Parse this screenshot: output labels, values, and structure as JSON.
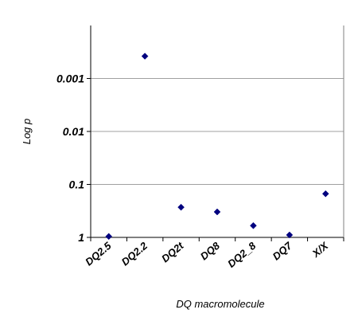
{
  "chart_data": {
    "type": "scatter",
    "xlabel": "DQ macromolecule",
    "ylabel": "Log p",
    "y_scale": "log-reversed",
    "ylim": [
      1,
      0.0001
    ],
    "grid": true,
    "legend": "none",
    "y_ticks": [
      {
        "value": 0.001,
        "label": "0.001"
      },
      {
        "value": 0.01,
        "label": "0.01"
      },
      {
        "value": 0.1,
        "label": "0.1"
      },
      {
        "value": 1,
        "label": "1"
      }
    ],
    "categories": [
      "DQ2.5",
      "DQ2.2",
      "DQ2t",
      "DQ8",
      "DQ2_8",
      "DQ7",
      "X/X"
    ],
    "values": [
      0.96,
      0.00038,
      0.27,
      0.33,
      0.6,
      0.9,
      0.15
    ],
    "colors": {
      "marker": "#00007F",
      "grid": "#A0A0A0",
      "axis": "#000000"
    }
  }
}
